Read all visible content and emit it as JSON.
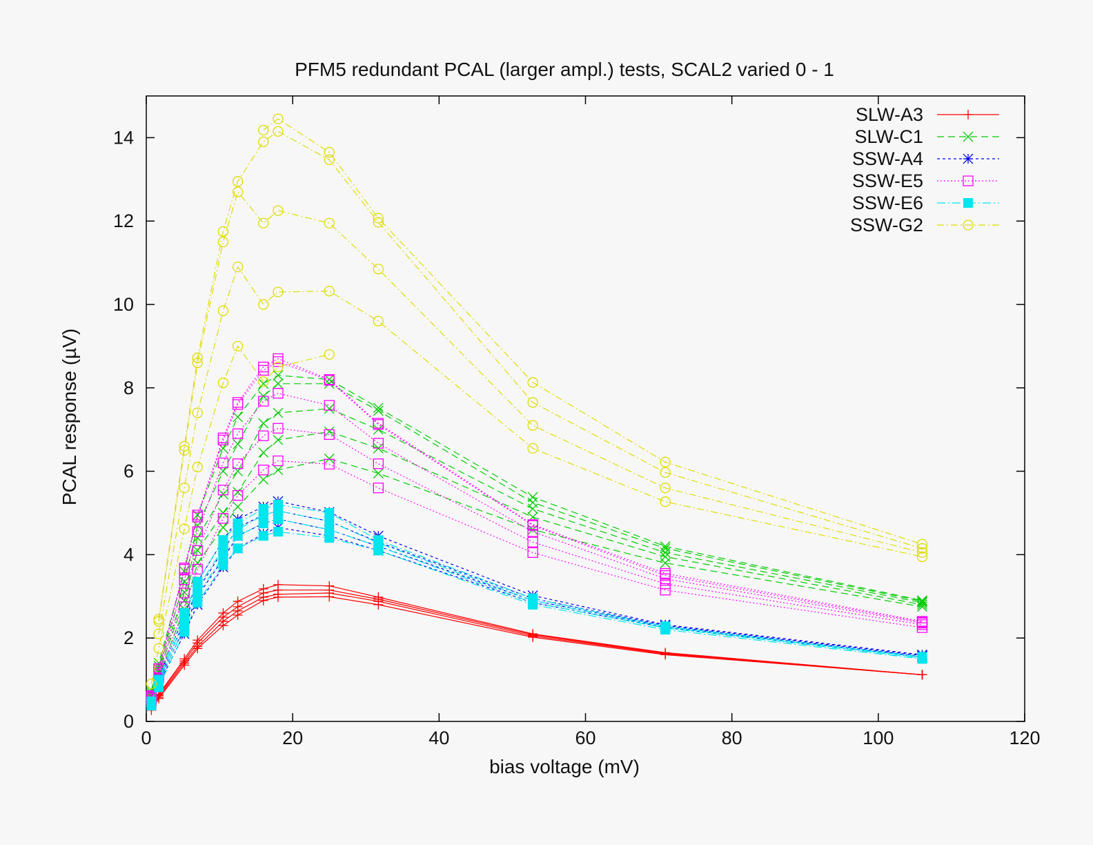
{
  "chart_data": {
    "type": "line",
    "title": "PFM5 redundant PCAL (larger ampl.) tests, SCAL2 varied 0 - 1",
    "xlabel": "bias voltage (mV)",
    "ylabel": "PCAL response (µV)",
    "xlim": [
      0,
      120
    ],
    "ylim": [
      0,
      15
    ],
    "xticks": [
      0,
      20,
      40,
      60,
      80,
      100,
      120
    ],
    "yticks": [
      0,
      2,
      4,
      6,
      8,
      10,
      12,
      14
    ],
    "grid": false,
    "legend_position": "top-right",
    "x": [
      0.7,
      1.7,
      5.2,
      7,
      10.5,
      12.5,
      16,
      18,
      25,
      31.7,
      52.8,
      70.9,
      106
    ],
    "series": [
      {
        "name": "SLW-A3",
        "color": "#ff0000",
        "marker": "plus",
        "dash": "",
        "curves": [
          [
            0.27,
            0.55,
            1.35,
            1.75,
            2.3,
            2.55,
            2.9,
            2.98,
            2.99,
            2.8,
            2.02,
            1.6,
            1.12
          ],
          [
            0.35,
            0.58,
            1.4,
            1.8,
            2.4,
            2.65,
            2.98,
            3.05,
            3.08,
            2.88,
            2.05,
            1.62,
            1.12
          ],
          [
            0.45,
            0.62,
            1.45,
            1.88,
            2.5,
            2.75,
            3.08,
            3.15,
            3.15,
            2.93,
            2.08,
            1.63,
            1.12
          ],
          [
            0.55,
            0.65,
            1.5,
            1.95,
            2.6,
            2.88,
            3.18,
            3.28,
            3.25,
            2.98,
            2.1,
            1.65,
            1.12
          ]
        ]
      },
      {
        "name": "SLW-C1",
        "color": "#00cc00",
        "marker": "cross",
        "dash": "10,6",
        "curves": [
          [
            0.55,
            1.1,
            2.7,
            3.8,
            4.65,
            5.15,
            5.8,
            6.03,
            6.3,
            5.95,
            4.6,
            3.8,
            2.75
          ],
          [
            0.6,
            1.18,
            2.9,
            4.1,
            5.0,
            5.5,
            6.45,
            6.75,
            6.95,
            6.55,
            4.9,
            3.95,
            2.8
          ],
          [
            0.65,
            1.26,
            3.1,
            4.4,
            5.45,
            6.0,
            7.15,
            7.4,
            7.5,
            7.0,
            5.1,
            4.05,
            2.85
          ],
          [
            0.7,
            1.33,
            3.35,
            4.7,
            6.0,
            6.65,
            7.8,
            8.1,
            8.1,
            7.45,
            5.25,
            4.15,
            2.88
          ],
          [
            0.75,
            1.4,
            3.6,
            4.95,
            6.55,
            7.3,
            8.1,
            8.3,
            8.2,
            7.52,
            5.38,
            4.2,
            2.9
          ]
        ]
      },
      {
        "name": "SSW-A4",
        "color": "#0000ee",
        "marker": "star",
        "dash": "4,4",
        "curves": [
          [
            0.42,
            0.9,
            2.1,
            2.8,
            3.7,
            4.15,
            4.5,
            4.65,
            4.45,
            4.1,
            2.85,
            2.25,
            1.55
          ],
          [
            0.45,
            0.95,
            2.25,
            3.0,
            3.9,
            4.45,
            4.75,
            4.85,
            4.6,
            4.2,
            2.9,
            2.28,
            1.56
          ],
          [
            0.47,
            1.0,
            2.4,
            3.15,
            4.1,
            4.65,
            4.95,
            5.05,
            4.8,
            4.3,
            2.95,
            2.3,
            1.58
          ],
          [
            0.5,
            1.05,
            2.55,
            3.35,
            4.35,
            4.85,
            5.15,
            5.28,
            5.02,
            4.45,
            3.02,
            2.32,
            1.6
          ]
        ]
      },
      {
        "name": "SSW-E5",
        "color": "#ff00ff",
        "marker": "square",
        "dash": "2,3",
        "curves": [
          [
            0.5,
            1.05,
            2.75,
            3.65,
            4.87,
            5.42,
            6.03,
            6.25,
            6.17,
            5.6,
            4.05,
            3.15,
            2.25
          ],
          [
            0.55,
            1.12,
            3.08,
            4.1,
            5.55,
            6.18,
            6.85,
            7.03,
            6.88,
            6.18,
            4.3,
            3.3,
            2.32
          ],
          [
            0.58,
            1.18,
            3.4,
            4.55,
            6.2,
            6.9,
            7.68,
            7.87,
            7.58,
            6.67,
            4.55,
            3.42,
            2.36
          ],
          [
            0.6,
            1.24,
            3.65,
            4.9,
            6.75,
            7.6,
            8.42,
            8.63,
            8.18,
            7.12,
            4.7,
            3.5,
            2.38
          ],
          [
            0.62,
            1.27,
            3.68,
            4.95,
            6.8,
            7.65,
            8.5,
            8.7,
            8.2,
            7.15,
            4.72,
            3.55,
            2.4
          ]
        ]
      },
      {
        "name": "SSW-E6",
        "color": "#00e5ee",
        "marker": "filled-square",
        "dash": "12,4,2,4",
        "curves": [
          [
            0.38,
            0.82,
            2.15,
            2.85,
            3.75,
            4.15,
            4.45,
            4.55,
            4.4,
            4.1,
            2.8,
            2.2,
            1.5
          ],
          [
            0.42,
            0.88,
            2.3,
            3.05,
            3.95,
            4.45,
            4.75,
            4.85,
            4.6,
            4.2,
            2.85,
            2.24,
            1.52
          ],
          [
            0.45,
            0.95,
            2.45,
            3.2,
            4.15,
            4.6,
            4.95,
            5.05,
            4.8,
            4.28,
            2.9,
            2.26,
            1.54
          ],
          [
            0.48,
            1.0,
            2.6,
            3.35,
            4.35,
            4.75,
            5.1,
            5.2,
            5.0,
            4.35,
            2.95,
            2.28,
            1.55
          ]
        ]
      },
      {
        "name": "SSW-G2",
        "color": "#dddd00",
        "marker": "circle",
        "dash": "10,4,2,4",
        "curves": [
          [
            0.9,
            1.75,
            4.62,
            6.1,
            8.12,
            9.0,
            8.15,
            8.5,
            8.8,
            null,
            null,
            null,
            null
          ],
          [
            null,
            2.1,
            5.6,
            7.4,
            9.85,
            10.9,
            10.0,
            10.3,
            10.32,
            9.6,
            6.55,
            5.27,
            3.95
          ],
          [
            null,
            2.4,
            6.5,
            8.6,
            11.5,
            12.7,
            11.95,
            12.25,
            11.95,
            10.85,
            7.1,
            5.6,
            4.05
          ],
          [
            null,
            2.45,
            6.6,
            8.72,
            11.75,
            12.95,
            13.9,
            14.15,
            13.47,
            11.97,
            7.65,
            5.97,
            4.15
          ],
          [
            null,
            null,
            null,
            null,
            null,
            null,
            14.18,
            14.45,
            13.65,
            12.07,
            8.13,
            6.22,
            4.25
          ]
        ]
      }
    ]
  }
}
